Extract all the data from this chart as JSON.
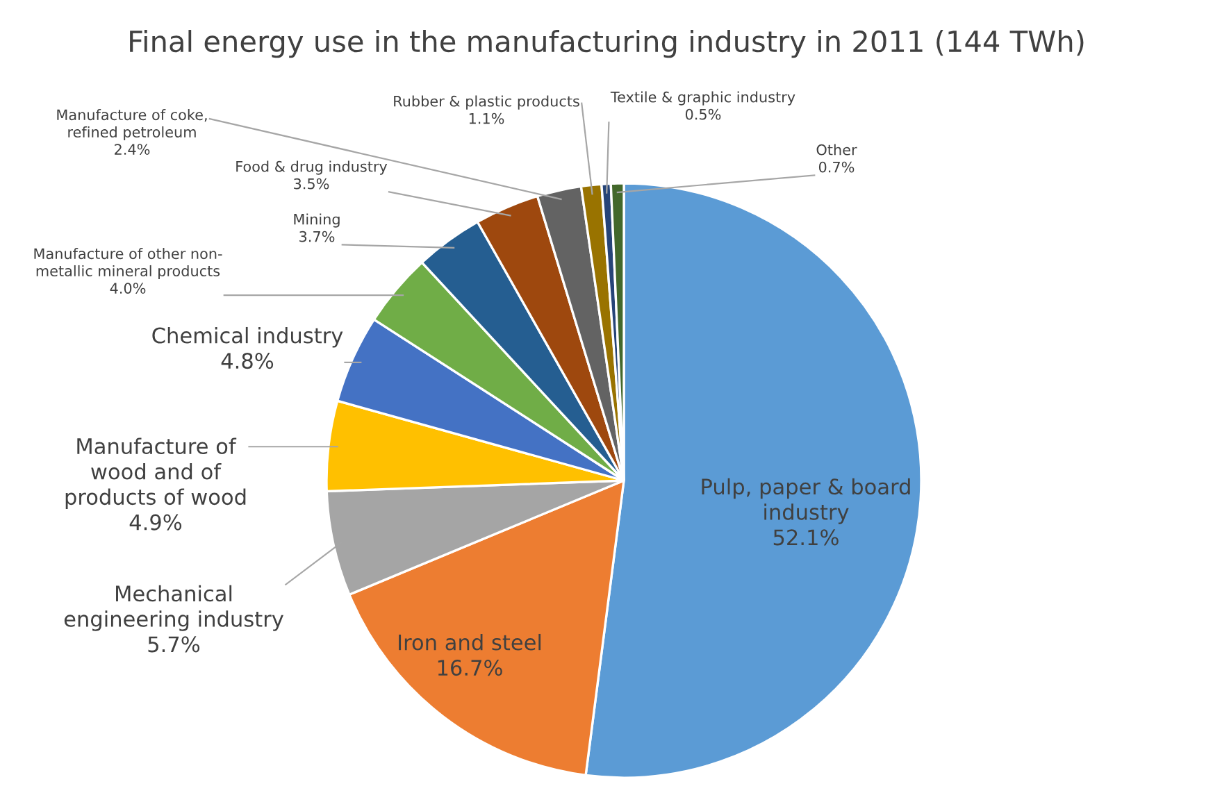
{
  "chart_data": {
    "type": "pie",
    "title": "Final energy use in the manufacturing industry in 2011 (144 TWh)",
    "categories": [
      "Pulp, paper & board\nindustry",
      "Iron and steel",
      "Mechanical\nengineering industry",
      "Manufacture of\nwood and of\nproducts of wood",
      "Chemical industry",
      "Manufacture of other non-\nmetallic mineral products",
      "Mining",
      "Food & drug industry",
      "Manufacture of coke,\nrefined petroleum",
      "Rubber & plastic products",
      "Textile & graphic industry",
      "Other"
    ],
    "values": [
      52.1,
      16.7,
      5.7,
      4.9,
      4.8,
      4.0,
      3.7,
      3.5,
      2.4,
      1.1,
      0.5,
      0.7
    ],
    "value_labels": [
      "52.1%",
      "16.7%",
      "5.7%",
      "4.9%",
      "4.8%",
      "4.0%",
      "3.7%",
      "3.5%",
      "2.4%",
      "1.1%",
      "0.5%",
      "0.7%"
    ],
    "colors": [
      "#5b9bd5",
      "#ed7d31",
      "#a5a5a5",
      "#ffc000",
      "#4472c4",
      "#70ad47",
      "#255e91",
      "#9e480e",
      "#636363",
      "#997300",
      "#264478",
      "#43682b"
    ],
    "legend": false
  }
}
